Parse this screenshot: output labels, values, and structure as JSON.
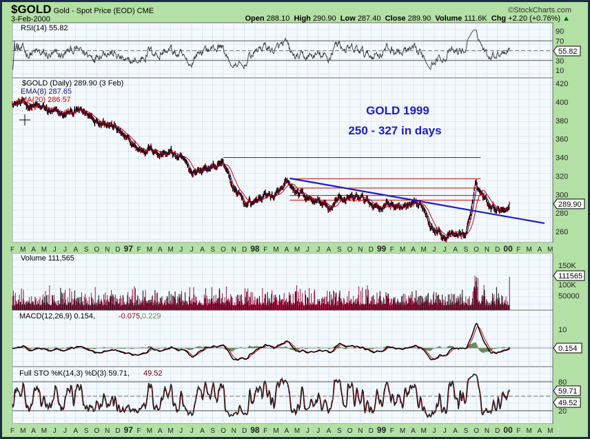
{
  "header": {
    "symbol": "$GOLD",
    "name": "Gold - Spot Price (EOD) CME",
    "date": "3-Feb-2000",
    "brand": "©StockCharts.com",
    "open_label": "Open",
    "open": "288.10",
    "high_label": "High",
    "high": "290.90",
    "low_label": "Low",
    "low": "287.40",
    "close_label": "Close",
    "close": "289.90",
    "volume_label": "Volume",
    "volume": "111.6K",
    "chg_label": "Chg",
    "chg": "+2.20 (+0.76%)"
  },
  "panels": {
    "rsi": {
      "legend": "RSI(14) 55.82",
      "tag": "55.82",
      "ticks": [
        "90",
        "70",
        "30",
        "10"
      ]
    },
    "price": {
      "legend": "$GOLD (Daily) 289.90 (3 Feb)",
      "ema_legend": "EMA(8) 287.65",
      "ma_legend": "MA(20) 286.57",
      "tag": "289.90",
      "ticks": [
        "420",
        "400",
        "380",
        "360",
        "340",
        "320",
        "300",
        "280",
        "260"
      ]
    },
    "volume": {
      "legend": "Volume 111,565",
      "tag": "111565",
      "ticks": [
        "150K",
        "100K",
        "50000"
      ]
    },
    "macd": {
      "legend": "MACD(12,26,9) 0.154,",
      "signal": "-0.075,",
      "hist": "0.229",
      "tag": "0.154",
      "ticks": [
        "10"
      ]
    },
    "sto": {
      "legend": "Full STO %K(14,3) %D(3) 59.71,",
      "d": "49.52",
      "tag_k": "59.71",
      "tag_d": "49.52",
      "ticks": [
        "80",
        "20"
      ]
    }
  },
  "annotations": {
    "title": "GOLD 1999",
    "subtitle": "250 - 327 in days"
  },
  "x_axis_labels": [
    "F",
    "M",
    "A",
    "M",
    "J",
    "J",
    "A",
    "S",
    "O",
    "N",
    "D",
    "97",
    "F",
    "M",
    "A",
    "M",
    "J",
    "J",
    "A",
    "S",
    "O",
    "N",
    "D",
    "98",
    "F",
    "M",
    "A",
    "M",
    "J",
    "J",
    "A",
    "S",
    "O",
    "N",
    "D",
    "99",
    "F",
    "M",
    "A",
    "M",
    "J",
    "J",
    "A",
    "S",
    "O",
    "N",
    "D",
    "00",
    "F",
    "M",
    "A",
    "M"
  ],
  "colors": {
    "background": "#b3e0a4",
    "plot": "#f4f9fe",
    "grid": "#c6daee",
    "price": "#000000",
    "ema": "#1a1a6e",
    "ma": "#cc0000",
    "trendline": "#1a1acc",
    "volume": "#99113b",
    "macd_hist": "#6a8a5a"
  },
  "chart_data": {
    "type": "line",
    "title": "$GOLD (Daily)",
    "x_start": "1996-02",
    "frequency": "monthly (approx. close)",
    "ylim": [
      250,
      425
    ],
    "price": [
      400,
      398,
      395,
      392,
      387,
      386,
      390,
      387,
      382,
      380,
      370,
      356,
      348,
      350,
      345,
      345,
      338,
      324,
      327,
      330,
      335,
      306,
      290,
      292,
      300,
      298,
      310,
      300,
      295,
      291,
      284,
      298,
      294,
      296,
      290,
      288,
      290,
      286,
      286,
      285,
      263,
      256,
      255,
      258,
      310,
      293,
      286,
      288,
      289.9
    ],
    "horizontal_lines": [
      340,
      317,
      307,
      299,
      294
    ],
    "trendline": {
      "from": [
        "1998-04",
        317.5
      ],
      "to": [
        "2000-04",
        269
      ]
    },
    "rsi_levels": [
      70,
      30
    ],
    "sto_levels": [
      80,
      20
    ],
    "last": {
      "close": 289.9,
      "ema8": 287.65,
      "ma20": 286.57,
      "rsi": 55.82,
      "volume": 111565,
      "macd": 0.154,
      "signal": -0.075,
      "hist": 0.229,
      "sto_k": 59.71,
      "sto_d": 49.52
    }
  }
}
